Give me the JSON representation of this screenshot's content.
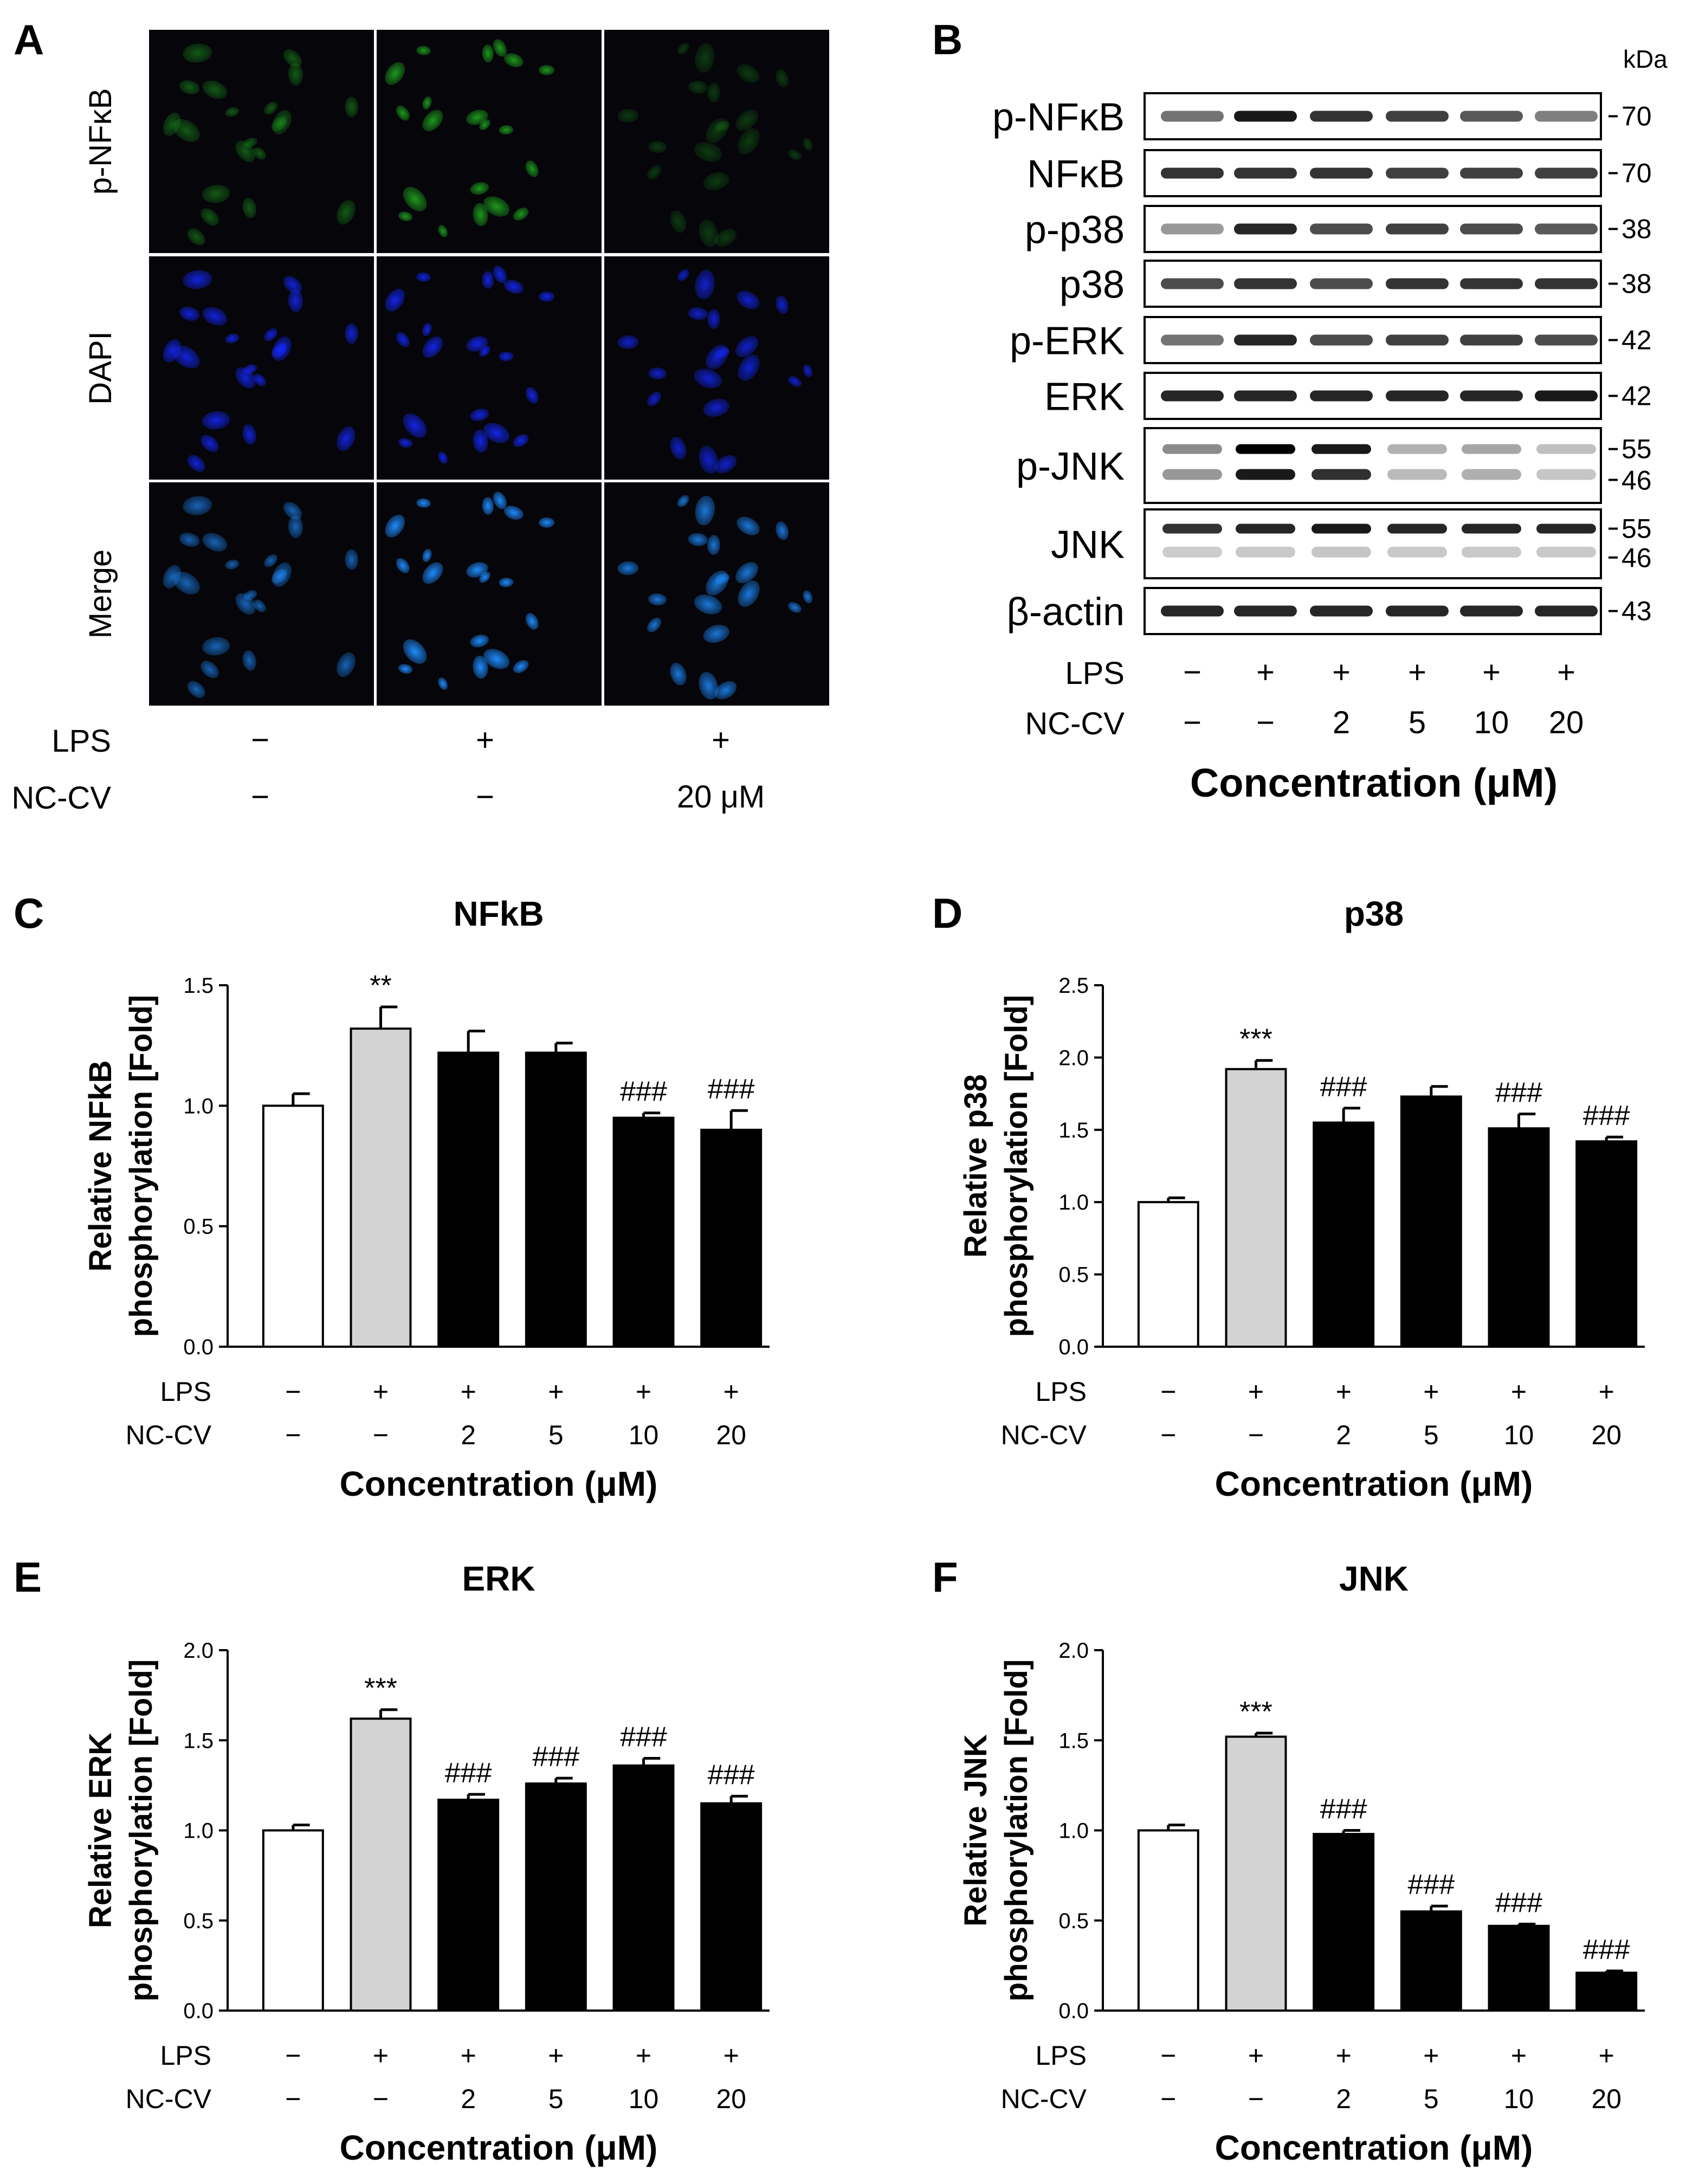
{
  "panel_letters": {
    "a": "A",
    "b": "B",
    "c": "C",
    "d": "D",
    "e": "E",
    "f": "F"
  },
  "panel_a": {
    "rows": [
      "p-NFκB",
      "DAPI",
      "Merge"
    ],
    "treatment_labels": [
      "LPS",
      "NC-CV"
    ],
    "lps": [
      "−",
      "+",
      "+"
    ],
    "nccv": [
      "−",
      "−",
      "20 μM"
    ],
    "colors": {
      "green": "#1ea01e",
      "blue": "#1428ff",
      "merge": "#1e8cff"
    }
  },
  "panel_b": {
    "kda_label": "kDa",
    "blots": [
      {
        "name": "p-NFκB",
        "kda": [
          "70"
        ],
        "intensity": [
          0.55,
          0.9,
          0.8,
          0.75,
          0.65,
          0.5
        ]
      },
      {
        "name": "NFκB",
        "kda": [
          "70"
        ],
        "intensity": [
          0.8,
          0.8,
          0.8,
          0.75,
          0.75,
          0.75
        ]
      },
      {
        "name": "p-p38",
        "kda": [
          "38"
        ],
        "intensity": [
          0.4,
          0.85,
          0.7,
          0.75,
          0.7,
          0.65
        ]
      },
      {
        "name": "p38",
        "kda": [
          "38"
        ],
        "intensity": [
          0.7,
          0.8,
          0.7,
          0.8,
          0.8,
          0.8
        ]
      },
      {
        "name": "p-ERK",
        "kda": [
          "42"
        ],
        "intensity": [
          0.55,
          0.85,
          0.7,
          0.75,
          0.75,
          0.7
        ]
      },
      {
        "name": "ERK",
        "kda": [
          "42"
        ],
        "intensity": [
          0.85,
          0.85,
          0.85,
          0.85,
          0.85,
          0.9
        ]
      },
      {
        "name": "p-JNK",
        "kda": [
          "55",
          "46"
        ],
        "intensity": [
          0.45,
          1.0,
          0.9,
          0.3,
          0.35,
          0.25
        ]
      },
      {
        "name": "JNK",
        "kda": [
          "55",
          "46"
        ],
        "intensity": [
          0.8,
          0.85,
          0.9,
          0.85,
          0.85,
          0.85
        ]
      },
      {
        "name": "β-actin",
        "kda": [
          "43"
        ],
        "intensity": [
          0.85,
          0.85,
          0.85,
          0.85,
          0.85,
          0.85
        ]
      }
    ],
    "lps_label": "LPS",
    "nccv_label": "NC-CV",
    "lps": [
      "−",
      "+",
      "+",
      "+",
      "+",
      "+"
    ],
    "nccv": [
      "−",
      "−",
      "2",
      "5",
      "10",
      "20"
    ],
    "xlabel": "Concentration (μM)"
  },
  "chart_data": [
    {
      "type": "bar",
      "title": "NFkB",
      "ylabel_line1": "Relative NFkB",
      "ylabel_line2": "phosphorylation [Fold]",
      "xlabel": "Concentration (μM)",
      "ylim": [
        0,
        1.5
      ],
      "yticks": [
        "0.0",
        "0.5",
        "1.0",
        "1.5"
      ],
      "values": [
        1.0,
        1.32,
        1.22,
        1.22,
        0.95,
        0.9
      ],
      "errors": [
        0.05,
        0.09,
        0.09,
        0.04,
        0.02,
        0.08
      ],
      "annotations": [
        "",
        "**",
        "",
        "",
        "###",
        "###"
      ],
      "fills": [
        "#ffffff",
        "#d3d3d3",
        "#000000",
        "#000000",
        "#000000",
        "#000000"
      ],
      "lps": [
        "−",
        "+",
        "+",
        "+",
        "+",
        "+"
      ],
      "nccv": [
        "−",
        "−",
        "2",
        "5",
        "10",
        "20"
      ]
    },
    {
      "type": "bar",
      "title": "p38",
      "ylabel_line1": "Relative p38",
      "ylabel_line2": "phosphorylation [Fold]",
      "xlabel": "Concentration (μM)",
      "ylim": [
        0,
        2.5
      ],
      "yticks": [
        "0.0",
        "0.5",
        "1.0",
        "1.5",
        "2.0",
        "2.5"
      ],
      "values": [
        1.0,
        1.92,
        1.55,
        1.73,
        1.51,
        1.42
      ],
      "errors": [
        0.03,
        0.06,
        0.1,
        0.07,
        0.1,
        0.03
      ],
      "annotations": [
        "",
        "***",
        "###",
        "",
        "###",
        "###"
      ],
      "fills": [
        "#ffffff",
        "#d3d3d3",
        "#000000",
        "#000000",
        "#000000",
        "#000000"
      ],
      "lps": [
        "−",
        "+",
        "+",
        "+",
        "+",
        "+"
      ],
      "nccv": [
        "−",
        "−",
        "2",
        "5",
        "10",
        "20"
      ]
    },
    {
      "type": "bar",
      "title": "ERK",
      "ylabel_line1": "Relative ERK",
      "ylabel_line2": "phosphorylation [Fold]",
      "xlabel": "Concentration (μM)",
      "ylim": [
        0,
        2.0
      ],
      "yticks": [
        "0.0",
        "0.5",
        "1.0",
        "1.5",
        "2.0"
      ],
      "values": [
        1.0,
        1.62,
        1.17,
        1.26,
        1.36,
        1.15
      ],
      "errors": [
        0.03,
        0.05,
        0.03,
        0.03,
        0.04,
        0.04
      ],
      "annotations": [
        "",
        "***",
        "###",
        "###",
        "###",
        "###"
      ],
      "fills": [
        "#ffffff",
        "#d3d3d3",
        "#000000",
        "#000000",
        "#000000",
        "#000000"
      ],
      "lps": [
        "−",
        "+",
        "+",
        "+",
        "+",
        "+"
      ],
      "nccv": [
        "−",
        "−",
        "2",
        "5",
        "10",
        "20"
      ]
    },
    {
      "type": "bar",
      "title": "JNK",
      "ylabel_line1": "Relative JNK",
      "ylabel_line2": "phosphorylation [Fold]",
      "xlabel": "Concentration (μM)",
      "ylim": [
        0,
        2.0
      ],
      "yticks": [
        "0.0",
        "0.5",
        "1.0",
        "1.5",
        "2.0"
      ],
      "values": [
        1.0,
        1.52,
        0.98,
        0.55,
        0.47,
        0.21
      ],
      "errors": [
        0.03,
        0.02,
        0.02,
        0.03,
        0.01,
        0.01
      ],
      "annotations": [
        "",
        "***",
        "###",
        "###",
        "###",
        "###"
      ],
      "fills": [
        "#ffffff",
        "#d3d3d3",
        "#000000",
        "#000000",
        "#000000",
        "#000000"
      ],
      "lps": [
        "−",
        "+",
        "+",
        "+",
        "+",
        "+"
      ],
      "nccv": [
        "−",
        "−",
        "2",
        "5",
        "10",
        "20"
      ]
    }
  ],
  "bar_axis_labels": {
    "lps": "LPS",
    "nccv": "NC-CV"
  }
}
